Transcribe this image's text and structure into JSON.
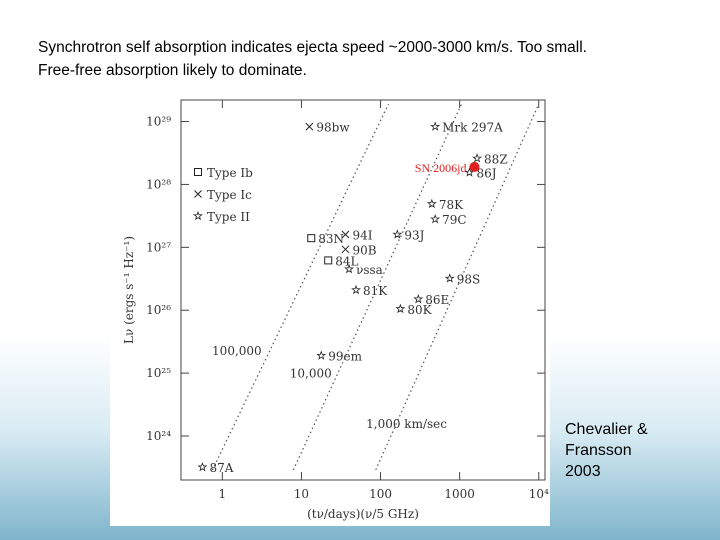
{
  "slide": {
    "heading": [
      "Synchrotron self absorption indicates ejecta speed ~2000-3000 km/s. Too small.",
      "Free-free absorption likely to dominate."
    ],
    "credit": [
      "Chevalier &",
      "Fransson",
      "2003"
    ]
  },
  "chart_data": {
    "type": "scatter",
    "x_label": "(tν/days)(ν/5 GHz)",
    "y_label": "Lν (ergs s⁻¹ Hz⁻¹)",
    "log_x": true,
    "log_y": true,
    "xlim": [
      0.3,
      12000
    ],
    "ylim": [
      2e+23,
      2.2e+29
    ],
    "xticks": [
      1,
      10,
      100,
      1000,
      {
        "value": 10000,
        "label": "10⁴"
      }
    ],
    "yticks": [
      {
        "value": 1e+29,
        "label": "10²⁹"
      },
      {
        "value": 1e+28,
        "label": "10²⁸"
      },
      {
        "value": 1e+27,
        "label": "10²⁷"
      },
      {
        "value": 1e+26,
        "label": "10²⁶"
      },
      {
        "value": 1e+25,
        "label": "10²⁵"
      },
      {
        "value": 1e+24,
        "label": "10²⁴"
      }
    ],
    "series": [
      {
        "name": "Type Ib",
        "marker": "square",
        "color": "#222",
        "x": [
          13.3,
          21.8
        ],
        "y": [
          1.4e+27,
          6.2e+26
        ],
        "labels": [
          "83N",
          "84L"
        ]
      },
      {
        "name": "Type Ic",
        "marker": "cross",
        "color": "#222",
        "x": [
          12.6,
          36,
          36
        ],
        "y": [
          8.3e+28,
          1.6e+27,
          9.3e+26
        ],
        "labels": [
          "98bw",
          "94I",
          "90B"
        ]
      },
      {
        "name": "Type II",
        "marker": "star",
        "color": "#222",
        "x": [
          490,
          1660,
          1330,
          445,
          490,
          163,
          40,
          49,
          750,
          300,
          178,
          17.8,
          0.56
        ],
        "y": [
          8.3e+28,
          2.6e+28,
          1.55e+28,
          4.9e+27,
          2.8e+27,
          1.6e+27,
          4.5e+26,
          2.1e+26,
          3.2e+26,
          1.5e+26,
          1.05e+26,
          1.9e+25,
          3.2e+23
        ],
        "labels": [
          "Mrk 297A",
          "88Z",
          "86J",
          "78K",
          "79C",
          "93J",
          "νssa",
          "81K",
          "98S",
          "86E",
          "80K",
          "99em",
          "87A"
        ]
      }
    ],
    "highlight": {
      "label": "SN 2006jd",
      "x": 1540,
      "y": 1.9e+28,
      "color": "#e02020"
    },
    "lines": [
      {
        "label": "100,000",
        "x": [
          0.75,
          126
        ],
        "y": [
          2.9e+23,
          1.9e+29
        ]
      },
      {
        "label": "10,000",
        "x": [
          7.9,
          1060
        ],
        "y": [
          2.9e+23,
          1.9e+29
        ]
      },
      {
        "label": "1,000 km/sec",
        "x": [
          87,
          10000
        ],
        "y": [
          2.9e+23,
          1.9e+29
        ]
      }
    ]
  }
}
